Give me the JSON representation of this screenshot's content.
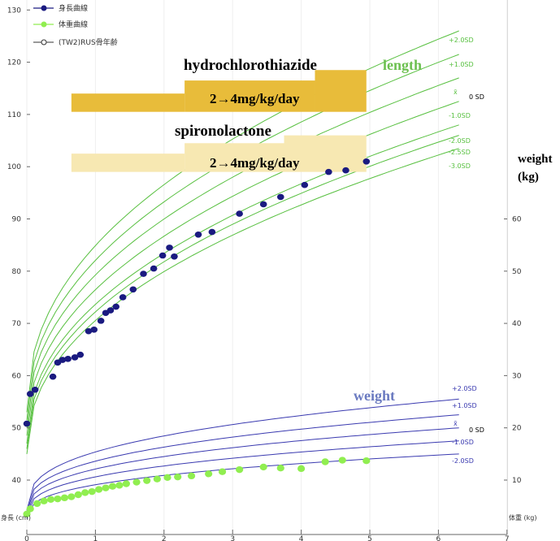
{
  "chart_data": {
    "type": "scatter",
    "colors": {
      "length_points": "#1a1a80",
      "weight_points": "#90ee50",
      "length_curves": "#58c040",
      "weight_curves": "#3a3ab0",
      "hydrochlorothiazide_bar": "#e8bc3a",
      "spironolactone_bar": "#f7e8b2"
    },
    "legend": {
      "entries": [
        {
          "label": "身長曲線",
          "marker": "navy-dot"
        },
        {
          "label": "体重曲線",
          "marker": "green-dot"
        },
        {
          "label": "(TW2)RUS骨年齢",
          "marker": "open-circle"
        }
      ],
      "placement": "top-left"
    },
    "x_axis": {
      "ticks": [
        "0",
        "1",
        "2",
        "3",
        "4",
        "5",
        "6",
        "7"
      ],
      "range": [
        0,
        7
      ]
    },
    "y_left": {
      "label": "身長 (cm)",
      "ticks": [
        "40",
        "50",
        "60",
        "70",
        "80",
        "90",
        "100",
        "110",
        "120",
        "130"
      ],
      "range": [
        35,
        131
      ]
    },
    "y_right": {
      "label": "体重 (kg)",
      "ticks": [
        "10",
        "20",
        "30",
        "40",
        "50",
        "60"
      ],
      "range": [
        0,
        63
      ]
    },
    "annotations": {
      "length_label": "length",
      "weight_label": "weight",
      "right_axis_title_line1": "weight",
      "right_axis_title_line2": "(kg)",
      "hydro_title": "hydrochlorothiazide",
      "hydro_dose": "2→4mg/kg/day",
      "spiro_title": "spironolactone",
      "spiro_dose": "2→4mg/kg/day"
    },
    "drug_bars": [
      {
        "name": "hydrochlorothiazide",
        "segments": [
          {
            "x0": 0.65,
            "x1": 2.3,
            "y0": 110.5,
            "y1": 114
          },
          {
            "x0": 2.3,
            "x1": 4.2,
            "y0": 110.5,
            "y1": 116.5
          },
          {
            "x0": 4.2,
            "x1": 4.95,
            "y0": 110.5,
            "y1": 118.5
          }
        ]
      },
      {
        "name": "spironolactone",
        "segments": [
          {
            "x0": 0.65,
            "x1": 2.3,
            "y0": 99,
            "y1": 102.5
          },
          {
            "x0": 2.3,
            "x1": 3.75,
            "y0": 99,
            "y1": 104.5
          },
          {
            "x0": 3.75,
            "x1": 4.95,
            "y0": 99,
            "y1": 106
          }
        ]
      }
    ],
    "length_sd_labels": [
      "+2.0SD",
      "+1.0SD",
      "x̄",
      "0 SD",
      "-1.0SD",
      "-2.0SD",
      "-2.5SD",
      "-3.0SD"
    ],
    "weight_sd_labels": [
      "+2.0SD",
      "+1.0SD",
      "x̄",
      "0 SD",
      "-1.0SD",
      "-2.0SD"
    ],
    "length_curve_endpoints": [
      {
        "label": "+2.0SD",
        "y": 126
      },
      {
        "label": "+1.0SD",
        "y": 121.5
      },
      {
        "label": "mean",
        "y": 117
      },
      {
        "label": "-1.0SD",
        "y": 112.5
      },
      {
        "label": "-2.0SD",
        "y": 108
      },
      {
        "label": "-2.5SD",
        "y": 106
      },
      {
        "label": "-3.0SD",
        "y": 103.5
      }
    ],
    "weight_curve_endpoints_kg": [
      {
        "label": "+2.0SD",
        "y": 25.5
      },
      {
        "label": "+1.0SD",
        "y": 22.5
      },
      {
        "label": "mean",
        "y": 20
      },
      {
        "label": "-1.0SD",
        "y": 17.5
      },
      {
        "label": "-2.0SD",
        "y": 15
      }
    ],
    "series": [
      {
        "name": "身長曲線",
        "axis": "left",
        "points": [
          [
            0.0,
            50.8
          ],
          [
            0.05,
            56.5
          ],
          [
            0.12,
            57.3
          ],
          [
            0.38,
            59.8
          ],
          [
            0.45,
            62.5
          ],
          [
            0.52,
            63.0
          ],
          [
            0.6,
            63.2
          ],
          [
            0.7,
            63.5
          ],
          [
            0.78,
            64.0
          ],
          [
            0.9,
            68.5
          ],
          [
            0.98,
            68.8
          ],
          [
            1.08,
            70.5
          ],
          [
            1.15,
            72.0
          ],
          [
            1.22,
            72.5
          ],
          [
            1.3,
            73.2
          ],
          [
            1.4,
            75.0
          ],
          [
            1.55,
            76.5
          ],
          [
            1.7,
            79.5
          ],
          [
            1.85,
            80.5
          ],
          [
            1.98,
            83.0
          ],
          [
            2.08,
            84.5
          ],
          [
            2.15,
            82.8
          ],
          [
            2.5,
            87.0
          ],
          [
            2.7,
            87.5
          ],
          [
            3.1,
            91.0
          ],
          [
            3.45,
            92.8
          ],
          [
            3.7,
            94.2
          ],
          [
            4.05,
            96.5
          ],
          [
            4.4,
            99.0
          ],
          [
            4.65,
            99.3
          ],
          [
            4.95,
            101.0
          ]
        ]
      },
      {
        "name": "体重曲線",
        "axis": "right",
        "points": [
          [
            0.0,
            3.5
          ],
          [
            0.05,
            4.5
          ],
          [
            0.15,
            5.5
          ],
          [
            0.25,
            6.0
          ],
          [
            0.35,
            6.3
          ],
          [
            0.45,
            6.4
          ],
          [
            0.55,
            6.6
          ],
          [
            0.65,
            6.8
          ],
          [
            0.75,
            7.2
          ],
          [
            0.85,
            7.6
          ],
          [
            0.95,
            7.8
          ],
          [
            1.05,
            8.2
          ],
          [
            1.15,
            8.5
          ],
          [
            1.25,
            8.8
          ],
          [
            1.35,
            9.0
          ],
          [
            1.45,
            9.3
          ],
          [
            1.6,
            9.6
          ],
          [
            1.75,
            9.9
          ],
          [
            1.9,
            10.2
          ],
          [
            2.05,
            10.5
          ],
          [
            2.2,
            10.6
          ],
          [
            2.4,
            10.8
          ],
          [
            2.65,
            11.2
          ],
          [
            2.85,
            11.6
          ],
          [
            3.1,
            12.0
          ],
          [
            3.45,
            12.5
          ],
          [
            3.7,
            12.3
          ],
          [
            4.0,
            12.2
          ],
          [
            4.35,
            13.5
          ],
          [
            4.6,
            13.8
          ],
          [
            4.95,
            13.7
          ]
        ]
      }
    ]
  }
}
